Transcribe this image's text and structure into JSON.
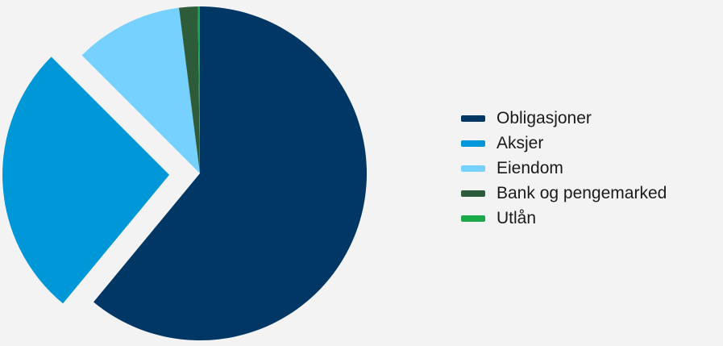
{
  "chart_data": {
    "type": "pie",
    "categories": [
      "Obligasjoner",
      "Aksjer",
      "Eiendom",
      "Bank og pengemarked",
      "Utlån"
    ],
    "values": [
      61,
      26.5,
      10.5,
      1.8,
      0.2
    ],
    "colors": [
      "#003764",
      "#0097d8",
      "#77d1ff",
      "#2e5c3a",
      "#1aa84a"
    ],
    "exploded": [
      "Aksjer"
    ],
    "title": "",
    "legend_position": "right"
  }
}
